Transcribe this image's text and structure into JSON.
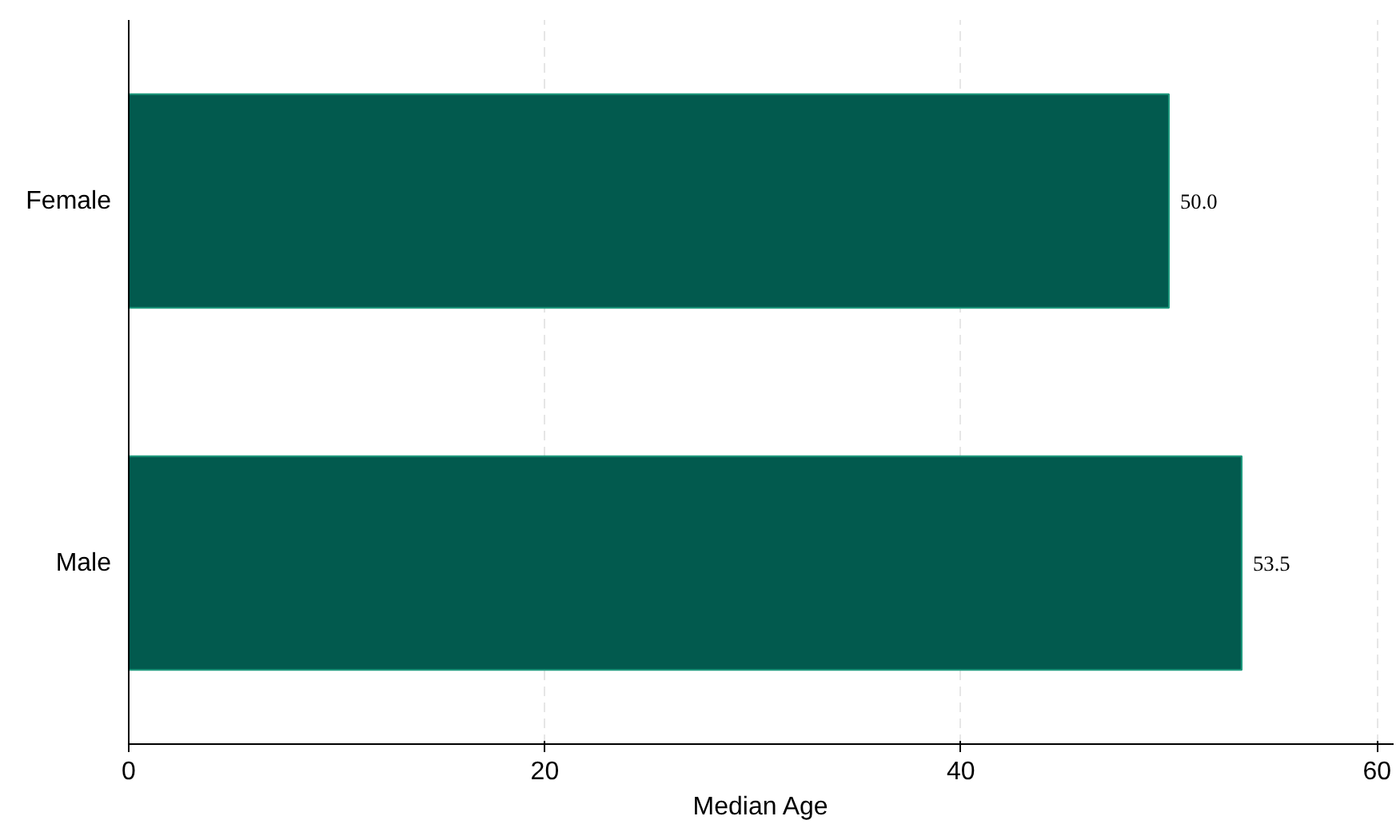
{
  "chart_data": {
    "type": "bar",
    "orientation": "horizontal",
    "xlabel": "Median Age",
    "categories": [
      "Female",
      "Male"
    ],
    "values": [
      50.0,
      53.5
    ],
    "value_labels": [
      "50.0",
      "53.5"
    ],
    "color": "#025a4e",
    "xlim": [
      0,
      60.8
    ],
    "xticks": [
      0,
      20,
      40,
      60
    ],
    "grid": "x"
  }
}
